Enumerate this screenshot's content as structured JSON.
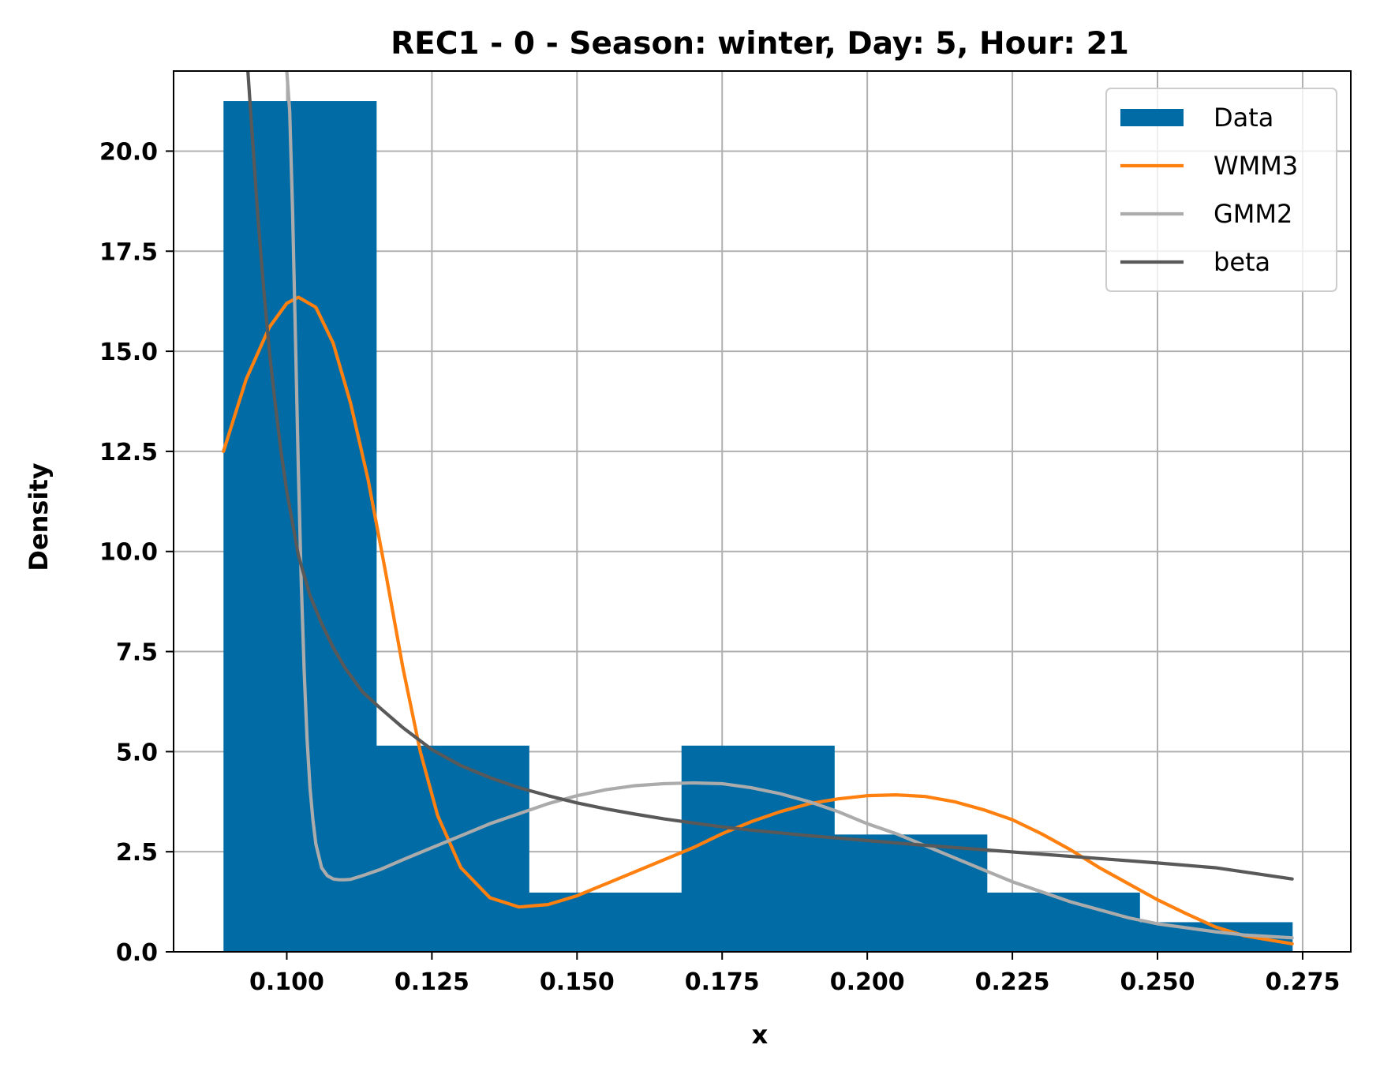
{
  "chart_data": {
    "type": "bar",
    "title": "REC1 - 0 - Season: winter, Day: 5, Hour: 21",
    "xlabel": "x",
    "ylabel": "Density",
    "xlim": [
      0.0805,
      0.2833
    ],
    "ylim": [
      0,
      22.0
    ],
    "xticks": [
      0.1,
      0.125,
      0.15,
      0.175,
      0.2,
      0.225,
      0.25,
      0.275
    ],
    "xtick_labels": [
      "0.100",
      "0.125",
      "0.150",
      "0.175",
      "0.200",
      "0.225",
      "0.250",
      "0.275"
    ],
    "yticks": [
      0,
      2.5,
      5,
      7.5,
      10,
      12.5,
      15,
      17.5,
      20
    ],
    "ytick_labels": [
      "0.0",
      "2.5",
      "5.0",
      "7.5",
      "10.0",
      "12.5",
      "15.0",
      "17.5",
      "20.0"
    ],
    "grid": true,
    "legend_position": "top-right",
    "colors": {
      "bars": "#006ba4",
      "wmm3": "#ff800e",
      "gmm2": "#ababab",
      "beta": "#595959",
      "grid": "#b0b0b0"
    },
    "histogram": {
      "name": "Data",
      "bin_edges": [
        0.0891,
        0.1154,
        0.1417,
        0.168,
        0.1943,
        0.2206,
        0.2469,
        0.2732
      ],
      "values": [
        21.25,
        5.15,
        1.48,
        5.15,
        2.93,
        1.48,
        0.74
      ]
    },
    "series": [
      {
        "name": "WMM3",
        "kind": "line",
        "x": [
          0.0891,
          0.093,
          0.097,
          0.1,
          0.102,
          0.105,
          0.108,
          0.111,
          0.114,
          0.117,
          0.12,
          0.123,
          0.126,
          0.13,
          0.135,
          0.14,
          0.145,
          0.15,
          0.155,
          0.16,
          0.165,
          0.17,
          0.175,
          0.18,
          0.185,
          0.19,
          0.195,
          0.2,
          0.205,
          0.21,
          0.215,
          0.22,
          0.225,
          0.23,
          0.235,
          0.24,
          0.245,
          0.25,
          0.255,
          0.26,
          0.265,
          0.2732
        ],
        "y": [
          12.5,
          14.3,
          15.6,
          16.2,
          16.35,
          16.1,
          15.2,
          13.7,
          11.8,
          9.5,
          7.1,
          5.0,
          3.4,
          2.1,
          1.35,
          1.12,
          1.18,
          1.4,
          1.7,
          2.0,
          2.3,
          2.6,
          2.95,
          3.25,
          3.5,
          3.7,
          3.82,
          3.9,
          3.92,
          3.88,
          3.75,
          3.55,
          3.3,
          2.95,
          2.55,
          2.1,
          1.7,
          1.3,
          0.95,
          0.62,
          0.4,
          0.2
        ]
      },
      {
        "name": "GMM2",
        "kind": "line",
        "x": [
          0.1,
          0.1005,
          0.101,
          0.1015,
          0.102,
          0.1025,
          0.103,
          0.1035,
          0.104,
          0.1045,
          0.105,
          0.106,
          0.107,
          0.108,
          0.109,
          0.11,
          0.111,
          0.113,
          0.116,
          0.12,
          0.125,
          0.13,
          0.135,
          0.14,
          0.145,
          0.15,
          0.155,
          0.16,
          0.165,
          0.17,
          0.175,
          0.18,
          0.185,
          0.19,
          0.195,
          0.2,
          0.205,
          0.21,
          0.215,
          0.22,
          0.225,
          0.23,
          0.235,
          0.24,
          0.245,
          0.25,
          0.255,
          0.26,
          0.265,
          0.2732
        ],
        "y": [
          22.0,
          21.0,
          18.5,
          15.3,
          12.0,
          9.2,
          7.0,
          5.3,
          4.1,
          3.3,
          2.7,
          2.1,
          1.9,
          1.82,
          1.8,
          1.8,
          1.81,
          1.9,
          2.05,
          2.3,
          2.6,
          2.9,
          3.2,
          3.45,
          3.7,
          3.9,
          4.05,
          4.15,
          4.2,
          4.22,
          4.2,
          4.1,
          3.95,
          3.75,
          3.5,
          3.2,
          2.95,
          2.65,
          2.35,
          2.05,
          1.75,
          1.5,
          1.25,
          1.05,
          0.85,
          0.7,
          0.6,
          0.5,
          0.42,
          0.35
        ]
      },
      {
        "name": "beta",
        "kind": "line",
        "x": [
          0.0933,
          0.094,
          0.095,
          0.096,
          0.097,
          0.098,
          0.099,
          0.1,
          0.102,
          0.104,
          0.106,
          0.108,
          0.11,
          0.113,
          0.116,
          0.12,
          0.125,
          0.13,
          0.135,
          0.14,
          0.145,
          0.15,
          0.155,
          0.16,
          0.165,
          0.17,
          0.175,
          0.18,
          0.185,
          0.19,
          0.195,
          0.2,
          0.21,
          0.22,
          0.23,
          0.24,
          0.25,
          0.26,
          0.2732
        ],
        "y": [
          22.0,
          20.5,
          18.4,
          16.6,
          15.0,
          13.7,
          12.5,
          11.5,
          9.9,
          8.9,
          8.2,
          7.6,
          7.1,
          6.5,
          6.1,
          5.6,
          5.05,
          4.65,
          4.35,
          4.1,
          3.9,
          3.72,
          3.57,
          3.44,
          3.32,
          3.22,
          3.12,
          3.04,
          2.97,
          2.9,
          2.84,
          2.78,
          2.66,
          2.55,
          2.44,
          2.33,
          2.22,
          2.1,
          1.82
        ]
      }
    ]
  }
}
